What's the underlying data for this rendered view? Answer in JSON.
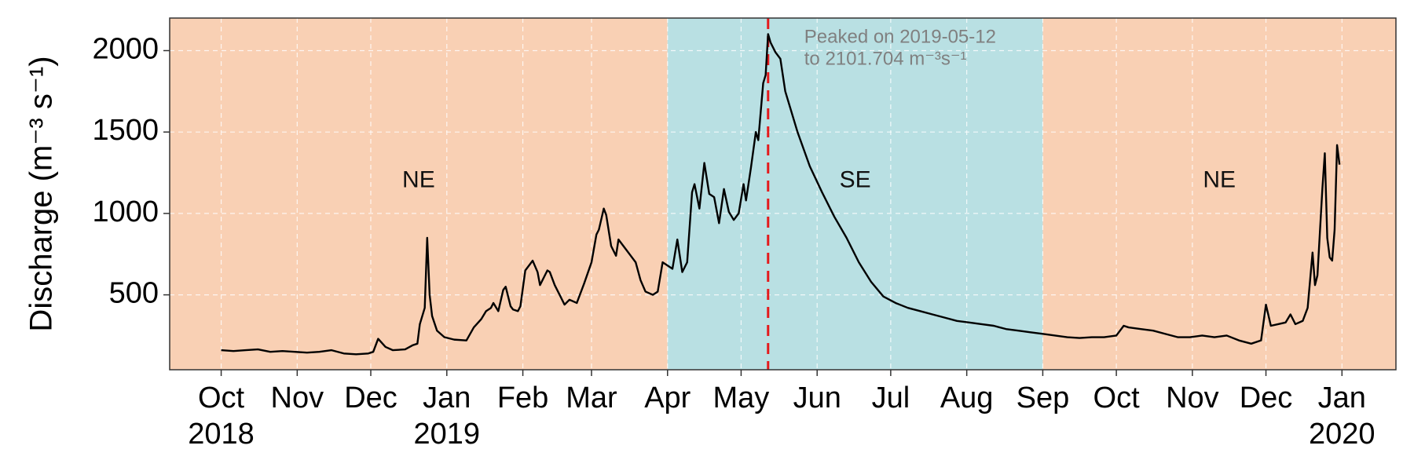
{
  "chart_data": {
    "type": "line",
    "y_label": "Discharge (m⁻³ s⁻¹)",
    "color": "#000000",
    "grid": true,
    "xlim": [
      "2018-09-10",
      "2020-01-23"
    ],
    "ylim": [
      40,
      2200
    ],
    "yticks": [
      500,
      1000,
      1500,
      2000
    ],
    "xticks": [
      {
        "value": "2018-10-01",
        "label": "Oct\n2018"
      },
      {
        "value": "2018-11-01",
        "label": "Nov"
      },
      {
        "value": "2018-12-01",
        "label": "Dec"
      },
      {
        "value": "2019-01-01",
        "label": "Jan\n2019"
      },
      {
        "value": "2019-02-01",
        "label": "Feb"
      },
      {
        "value": "2019-03-01",
        "label": "Mar"
      },
      {
        "value": "2019-04-01",
        "label": "Apr"
      },
      {
        "value": "2019-05-01",
        "label": "May"
      },
      {
        "value": "2019-06-01",
        "label": "Jun"
      },
      {
        "value": "2019-07-01",
        "label": "Jul"
      },
      {
        "value": "2019-08-01",
        "label": "Aug"
      },
      {
        "value": "2019-09-01",
        "label": "Sep"
      },
      {
        "value": "2019-10-01",
        "label": "Oct"
      },
      {
        "value": "2019-11-01",
        "label": "Nov"
      },
      {
        "value": "2019-12-01",
        "label": "Dec"
      },
      {
        "value": "2020-01-01",
        "label": "Jan\n2020"
      }
    ],
    "regions": [
      {
        "label": "NE",
        "from": "2018-09-10",
        "to": "2019-04-01",
        "color": "#f9d0b4"
      },
      {
        "label": "SE",
        "from": "2019-04-01",
        "to": "2019-09-01",
        "color": "#b9e0e3"
      },
      {
        "label": "NE",
        "from": "2019-09-01",
        "to": "2020-01-23",
        "color": "#f9d0b4"
      }
    ],
    "annotation": {
      "x": "2019-05-12",
      "color": "#e41a1c",
      "lines": [
        "Peaked on 2019-05-12",
        "to 2101.704 m⁻³s⁻¹"
      ]
    },
    "x": [
      "2018-10-01",
      "2018-10-06",
      "2018-10-11",
      "2018-10-16",
      "2018-10-21",
      "2018-10-26",
      "2018-10-31",
      "2018-11-05",
      "2018-11-10",
      "2018-11-15",
      "2018-11-20",
      "2018-11-25",
      "2018-11-30",
      "2018-12-02",
      "2018-12-04",
      "2018-12-07",
      "2018-12-10",
      "2018-12-15",
      "2018-12-18",
      "2018-12-20",
      "2018-12-21",
      "2018-12-23",
      "2018-12-24",
      "2018-12-25",
      "2018-12-26",
      "2018-12-28",
      "2018-12-31",
      "2019-01-04",
      "2019-01-09",
      "2019-01-12",
      "2019-01-15",
      "2019-01-17",
      "2019-01-19",
      "2019-01-20",
      "2019-01-22",
      "2019-01-24",
      "2019-01-25",
      "2019-01-27",
      "2019-01-28",
      "2019-01-30",
      "2019-01-31",
      "2019-02-02",
      "2019-02-05",
      "2019-02-07",
      "2019-02-08",
      "2019-02-11",
      "2019-02-12",
      "2019-02-14",
      "2019-02-16",
      "2019-02-18",
      "2019-02-20",
      "2019-02-23",
      "2019-02-26",
      "2019-03-01",
      "2019-03-03",
      "2019-03-04",
      "2019-03-06",
      "2019-03-07",
      "2019-03-09",
      "2019-03-11",
      "2019-03-12",
      "2019-03-14",
      "2019-03-15",
      "2019-03-17",
      "2019-03-19",
      "2019-03-21",
      "2019-03-23",
      "2019-03-26",
      "2019-03-28",
      "2019-03-30",
      "2019-04-01",
      "2019-04-03",
      "2019-04-05",
      "2019-04-07",
      "2019-04-09",
      "2019-04-11",
      "2019-04-12",
      "2019-04-14",
      "2019-04-16",
      "2019-04-18",
      "2019-04-20",
      "2019-04-22",
      "2019-04-24",
      "2019-04-26",
      "2019-04-28",
      "2019-04-30",
      "2019-05-02",
      "2019-05-03",
      "2019-05-05",
      "2019-05-07",
      "2019-05-08",
      "2019-05-10",
      "2019-05-11",
      "2019-05-12",
      "2019-05-13",
      "2019-05-15",
      "2019-05-17",
      "2019-05-19",
      "2019-05-24",
      "2019-05-29",
      "2019-06-03",
      "2019-06-08",
      "2019-06-13",
      "2019-06-18",
      "2019-06-23",
      "2019-06-28",
      "2019-07-03",
      "2019-07-08",
      "2019-07-13",
      "2019-07-18",
      "2019-07-23",
      "2019-07-28",
      "2019-08-02",
      "2019-08-07",
      "2019-08-12",
      "2019-08-17",
      "2019-08-22",
      "2019-08-27",
      "2019-09-01",
      "2019-09-06",
      "2019-09-11",
      "2019-09-16",
      "2019-09-21",
      "2019-09-26",
      "2019-10-01",
      "2019-10-04",
      "2019-10-06",
      "2019-10-11",
      "2019-10-16",
      "2019-10-21",
      "2019-10-26",
      "2019-10-31",
      "2019-11-05",
      "2019-11-10",
      "2019-11-15",
      "2019-11-20",
      "2019-11-25",
      "2019-11-29",
      "2019-12-01",
      "2019-12-03",
      "2019-12-06",
      "2019-12-09",
      "2019-12-11",
      "2019-12-13",
      "2019-12-16",
      "2019-12-18",
      "2019-12-20",
      "2019-12-21",
      "2019-12-22",
      "2019-12-24",
      "2019-12-25",
      "2019-12-26",
      "2019-12-27",
      "2019-12-28",
      "2019-12-29",
      "2019-12-30",
      "2019-12-31"
    ],
    "values": [
      160,
      155,
      160,
      165,
      150,
      155,
      150,
      145,
      150,
      160,
      140,
      135,
      140,
      150,
      230,
      180,
      160,
      165,
      190,
      200,
      320,
      420,
      850,
      500,
      370,
      280,
      240,
      225,
      220,
      300,
      350,
      400,
      420,
      450,
      400,
      530,
      550,
      430,
      410,
      400,
      430,
      650,
      710,
      640,
      560,
      650,
      640,
      560,
      500,
      440,
      470,
      450,
      570,
      700,
      870,
      900,
      1030,
      990,
      800,
      740,
      840,
      800,
      780,
      740,
      700,
      590,
      520,
      500,
      520,
      700,
      680,
      660,
      840,
      640,
      700,
      1130,
      1180,
      1030,
      1310,
      1120,
      1100,
      940,
      1150,
      1010,
      960,
      1000,
      1180,
      1080,
      1280,
      1500,
      1450,
      1800,
      1850,
      2101.704,
      2050,
      1990,
      1950,
      1750,
      1500,
      1290,
      1130,
      980,
      850,
      700,
      580,
      490,
      450,
      420,
      400,
      380,
      360,
      340,
      330,
      320,
      310,
      290,
      280,
      270,
      260,
      250,
      240,
      235,
      240,
      240,
      250,
      310,
      300,
      290,
      280,
      260,
      240,
      240,
      250,
      240,
      250,
      220,
      200,
      220,
      440,
      310,
      320,
      330,
      380,
      320,
      340,
      420,
      760,
      560,
      620,
      1150,
      1370,
      850,
      730,
      710,
      900,
      1420,
      1300
    ]
  }
}
